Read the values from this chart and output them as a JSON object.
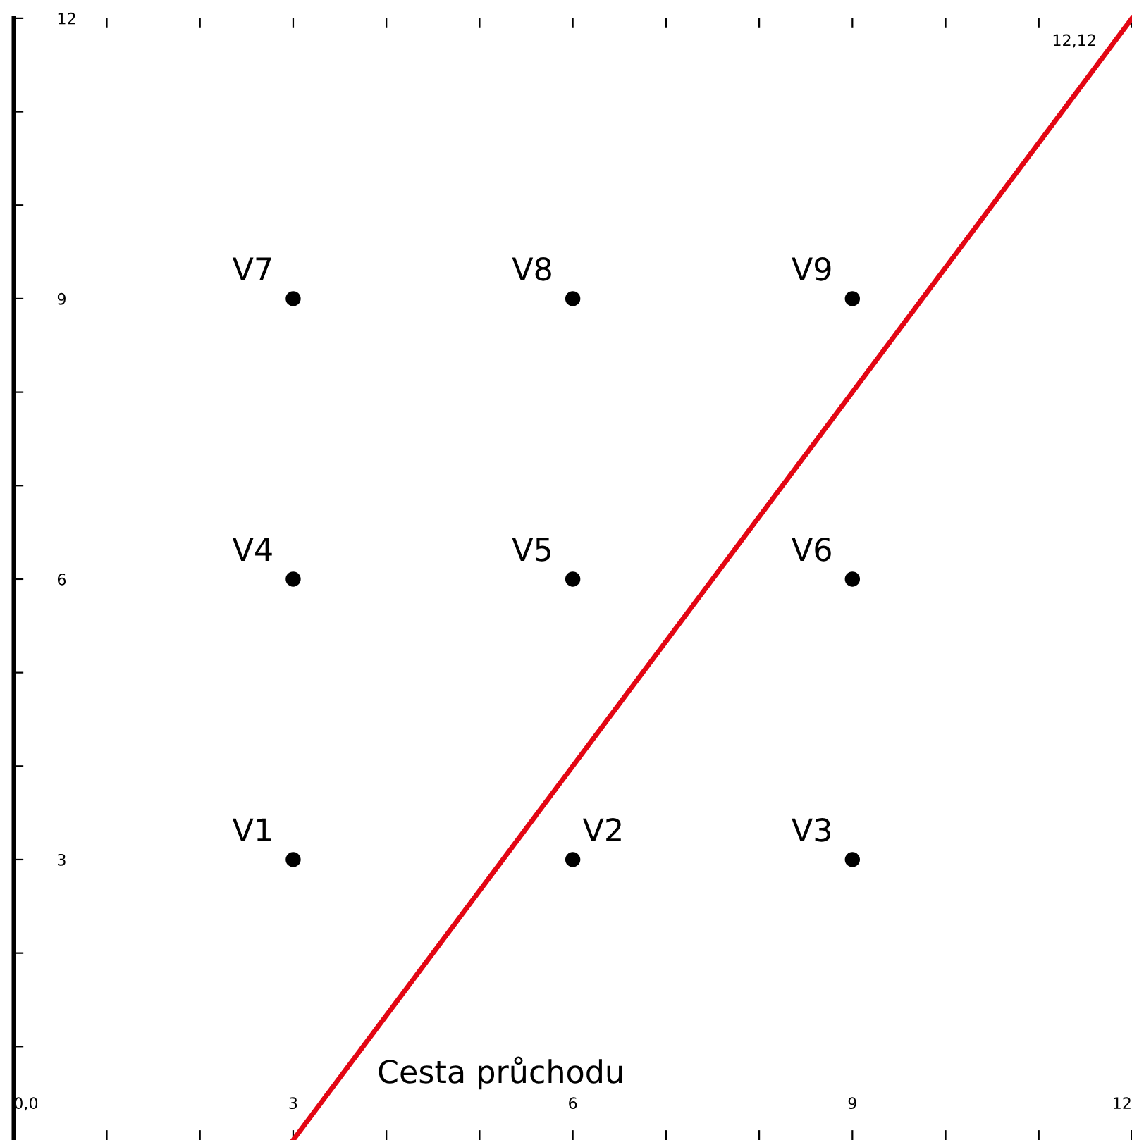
{
  "chart_data": {
    "type": "scatter",
    "xlim": [
      0,
      12
    ],
    "ylim": [
      0,
      12
    ],
    "xticks": [
      {
        "value": 0,
        "label": "0,0"
      },
      {
        "value": 1,
        "label": null
      },
      {
        "value": 2,
        "label": null
      },
      3,
      {
        "value": 4,
        "label": null
      },
      {
        "value": 5,
        "label": null
      },
      6,
      {
        "value": 7,
        "label": null
      },
      {
        "value": 8,
        "label": null
      },
      9,
      {
        "value": 10,
        "label": null
      },
      {
        "value": 11,
        "label": null
      },
      12
    ],
    "yticks": [
      {
        "value": 1,
        "label": null
      },
      {
        "value": 2,
        "label": null
      },
      3,
      {
        "value": 4,
        "label": null
      },
      {
        "value": 5,
        "label": null
      },
      6,
      {
        "value": 7,
        "label": null
      },
      {
        "value": 8,
        "label": null
      },
      9,
      {
        "value": 10,
        "label": null
      },
      {
        "value": 11,
        "label": null
      },
      12
    ],
    "grid": false,
    "series": [
      {
        "marker": "circle",
        "color": "#000000",
        "x": [
          3,
          6,
          9,
          3,
          6,
          9,
          3,
          6,
          9
        ],
        "values": [
          3,
          3,
          3,
          6,
          6,
          6,
          9,
          9,
          9
        ],
        "value_labels": [
          "V1",
          "V2",
          "V3",
          "V4",
          "V5",
          "V6",
          "V7",
          "V8",
          "V9"
        ]
      },
      {
        "type": "line",
        "color": "#e30613",
        "x": [
          3,
          12
        ],
        "values": [
          0,
          12
        ],
        "line_style": "solid"
      }
    ],
    "annotations": [
      "Cesta průchodu",
      {
        "text": "12,12",
        "x": 12,
        "y": 12
      }
    ]
  }
}
